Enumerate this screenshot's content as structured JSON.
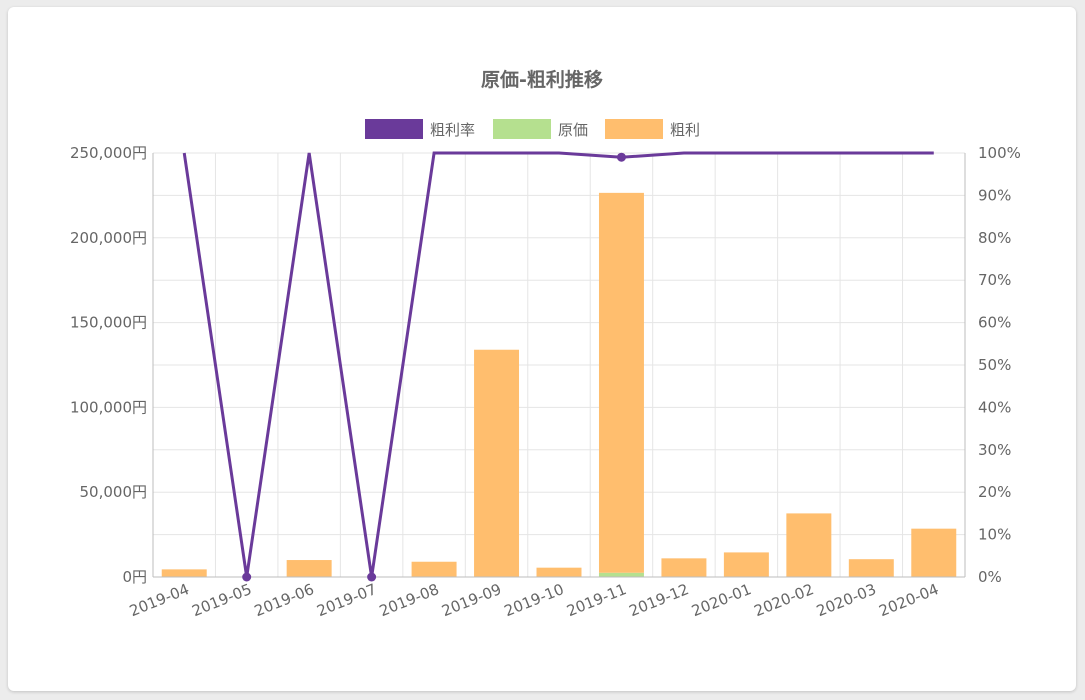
{
  "chart_data": {
    "type": "bar",
    "title": "原価-粗利推移",
    "categories": [
      "2019-04",
      "2019-05",
      "2019-06",
      "2019-07",
      "2019-08",
      "2019-09",
      "2019-10",
      "2019-11",
      "2019-12",
      "2020-01",
      "2020-02",
      "2020-03",
      "2020-04"
    ],
    "series": [
      {
        "name": "粗利率",
        "type": "line",
        "axis": "right",
        "color": "#6a3a9a",
        "values": [
          100,
          0,
          100,
          0,
          100,
          100,
          100,
          99,
          100,
          100,
          100,
          100,
          100
        ]
      },
      {
        "name": "原価",
        "type": "bar",
        "axis": "left",
        "stacked": true,
        "color": "#b5e08f",
        "values": [
          0,
          0,
          0,
          0,
          0,
          0,
          0,
          2500,
          0,
          0,
          0,
          0,
          0
        ]
      },
      {
        "name": "粗利",
        "type": "bar",
        "axis": "left",
        "stacked": true,
        "color": "#ffbe6e",
        "values": [
          4500,
          0,
          10000,
          0,
          9000,
          134000,
          5500,
          224000,
          11000,
          14500,
          37500,
          10500,
          28500
        ]
      }
    ],
    "y_left": {
      "min": 0,
      "max": 250000,
      "ticks": [
        "0円",
        "50,000円",
        "100,000円",
        "150,000円",
        "200,000円",
        "250,000円"
      ]
    },
    "y_right": {
      "min": 0,
      "max": 100,
      "ticks": [
        "0%",
        "10%",
        "20%",
        "30%",
        "40%",
        "50%",
        "60%",
        "70%",
        "80%",
        "90%",
        "100%"
      ]
    },
    "grid": true,
    "legend_position": "top"
  }
}
